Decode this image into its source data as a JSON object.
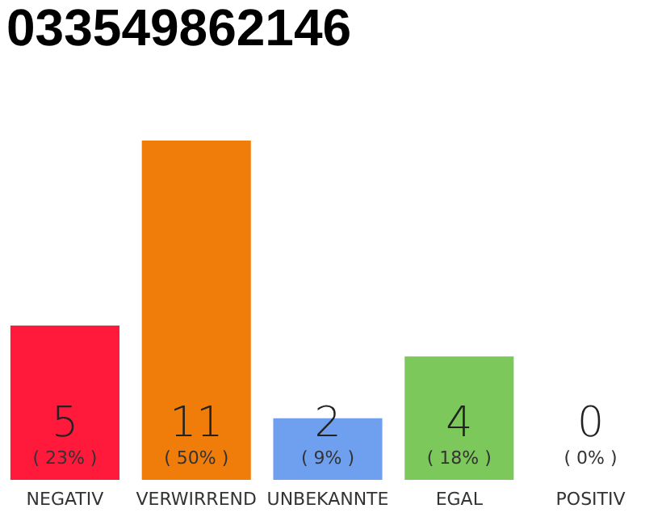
{
  "chart_data": {
    "type": "bar",
    "title": "033549862146",
    "categories": [
      "NEGATIV",
      "VERWIRREND",
      "UNBEKANNTE",
      "EGAL",
      "POSITIV"
    ],
    "values": [
      5,
      11,
      2,
      4,
      0
    ],
    "colors": [
      "#ff1a3c",
      "#f07d0a",
      "#6fa0f0",
      "#7dc85a",
      "#eeeeee"
    ],
    "data_labels": true,
    "ylim": [
      0,
      11
    ],
    "tick_labels": "x",
    "annotations": [
      "( 23% )",
      "( 50% )",
      "( 9% )",
      "( 18% )",
      "( 0% )"
    ]
  }
}
